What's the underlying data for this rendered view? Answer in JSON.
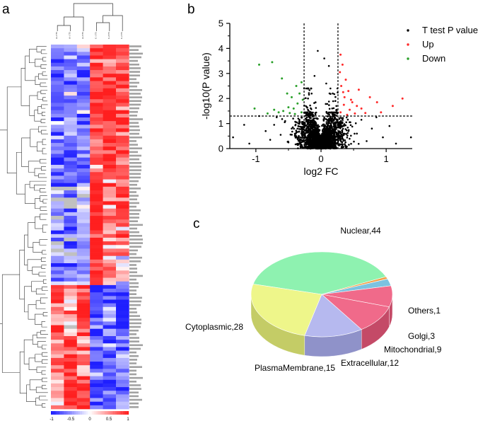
{
  "panels": {
    "a": "a",
    "b": "b",
    "c": "c"
  },
  "chart_data": [
    {
      "type": "heatmap",
      "title": "",
      "columns": [
        "A-2 T5",
        "A-1 T5",
        "A-3 T5",
        "C-1 T5",
        "C-3 T5",
        "C-2 T5"
      ],
      "row_count": 100,
      "colorbar": {
        "ticks": [
          "-1",
          "-0.5",
          "0",
          "0.5",
          "1"
        ],
        "min": -1,
        "max": 1
      },
      "colors": {
        "low": "#1f1fff",
        "mid": "#ffffff",
        "high": "#ff1f1f",
        "missing": "#c0c0c0"
      }
    },
    {
      "type": "scatter",
      "title": "",
      "xlabel": "log2 FC",
      "ylabel": "-log10(P value)",
      "xlim": [
        -1.4,
        1.4
      ],
      "ylim": [
        0,
        5
      ],
      "xticks": [
        "-1",
        "0",
        "1"
      ],
      "yticks": [
        "0",
        "1",
        "2",
        "3",
        "4",
        "5"
      ],
      "thresholds": {
        "x": [
          -0.26,
          0.26
        ],
        "y": 1.3
      },
      "series": [
        {
          "name": "T test P value",
          "color": "#000000",
          "points": [
            [
              -1.35,
              0.45
            ],
            [
              -1.18,
              0.95
            ],
            [
              -1.1,
              0.2
            ],
            [
              -0.95,
              1.3
            ],
            [
              -0.85,
              0.7
            ],
            [
              -0.78,
              0.35
            ],
            [
              -0.72,
              0.95
            ],
            [
              -0.68,
              1.25
            ],
            [
              -0.62,
              0.55
            ],
            [
              -0.55,
              1.1
            ],
            [
              -0.5,
              0.25
            ],
            [
              -0.45,
              0.8
            ],
            [
              -0.4,
              0.5
            ],
            [
              -0.35,
              1.2
            ],
            [
              -0.3,
              0.15
            ],
            [
              -0.05,
              3.9
            ],
            [
              0.05,
              3.6
            ],
            [
              0.12,
              3.3
            ],
            [
              -0.1,
              2.9
            ],
            [
              0.08,
              2.6
            ],
            [
              -0.15,
              2.4
            ],
            [
              0.18,
              2.2
            ],
            [
              -0.2,
              2.0
            ],
            [
              0.22,
              1.9
            ],
            [
              0.35,
              0.9
            ],
            [
              0.45,
              1.05
            ],
            [
              0.55,
              0.6
            ],
            [
              0.62,
              1.15
            ],
            [
              0.7,
              0.3
            ],
            [
              0.78,
              0.8
            ],
            [
              0.85,
              1.25
            ],
            [
              0.95,
              0.45
            ],
            [
              1.05,
              0.9
            ],
            [
              1.15,
              0.2
            ],
            [
              1.38,
              0.45
            ]
          ]
        },
        {
          "name": "Up",
          "color": "#ff2a2a",
          "points": [
            [
              0.3,
              3.75
            ],
            [
              0.33,
              3.35
            ],
            [
              0.29,
              3.05
            ],
            [
              0.38,
              2.75
            ],
            [
              0.31,
              2.5
            ],
            [
              0.42,
              2.3
            ],
            [
              0.36,
              2.05
            ],
            [
              0.48,
              1.85
            ],
            [
              0.55,
              1.7
            ],
            [
              0.62,
              1.6
            ],
            [
              0.35,
              1.75
            ],
            [
              0.44,
              1.55
            ],
            [
              0.3,
              1.45
            ],
            [
              0.52,
              1.4
            ],
            [
              0.4,
              1.35
            ],
            [
              0.75,
              2.05
            ],
            [
              0.86,
              1.85
            ],
            [
              0.92,
              1.45
            ],
            [
              1.25,
              2.0
            ],
            [
              1.1,
              1.7
            ],
            [
              0.68,
              1.42
            ],
            [
              0.58,
              2.35
            ],
            [
              0.46,
              1.95
            ],
            [
              0.34,
              2.25
            ]
          ]
        },
        {
          "name": "Down",
          "color": "#2aa02a",
          "points": [
            [
              -0.75,
              3.45
            ],
            [
              -0.95,
              3.35
            ],
            [
              -0.6,
              2.8
            ],
            [
              -0.3,
              2.65
            ],
            [
              -0.38,
              2.5
            ],
            [
              -0.45,
              2.05
            ],
            [
              -0.52,
              2.2
            ],
            [
              -0.33,
              2.2
            ],
            [
              -0.28,
              1.95
            ],
            [
              -0.36,
              1.8
            ],
            [
              -0.42,
              1.6
            ],
            [
              -0.5,
              1.65
            ],
            [
              -0.58,
              1.5
            ],
            [
              -0.65,
              1.45
            ],
            [
              -0.72,
              1.55
            ],
            [
              -0.82,
              1.4
            ],
            [
              -1.02,
              1.6
            ],
            [
              -0.3,
              1.45
            ],
            [
              -0.4,
              1.38
            ],
            [
              -0.48,
              1.42
            ]
          ]
        }
      ],
      "cloud_count": 2200
    },
    {
      "type": "pie",
      "title": "",
      "slices": [
        {
          "label": "Nuclear,44",
          "name": "Nuclear",
          "value": 44,
          "color": "#8ef2b0",
          "side": "#64c98c"
        },
        {
          "label": "Others,1",
          "name": "Others",
          "value": 1,
          "color": "#f2a04a",
          "side": "#c97f33"
        },
        {
          "label": "Golgi,3",
          "name": "Golgi",
          "value": 3,
          "color": "#7cc2e0",
          "side": "#5b9cb8"
        },
        {
          "label": "Mitochondrial,9",
          "name": "Mitochondrial",
          "value": 9,
          "color": "#f06a8a",
          "side": "#c44a67"
        },
        {
          "label": "Extracellular,12",
          "name": "Extracellular",
          "value": 12,
          "color": "#f06a8a",
          "side": "#c44a67"
        },
        {
          "label": "PlasmaMembrane,15",
          "name": "PlasmaMembrane",
          "value": 15,
          "color": "#b6b9ef",
          "side": "#8f92c9"
        },
        {
          "label": "Cytoplasmic,28",
          "name": "Cytoplasmic",
          "value": 28,
          "color": "#eef68a",
          "side": "#c4cc66"
        }
      ]
    }
  ]
}
